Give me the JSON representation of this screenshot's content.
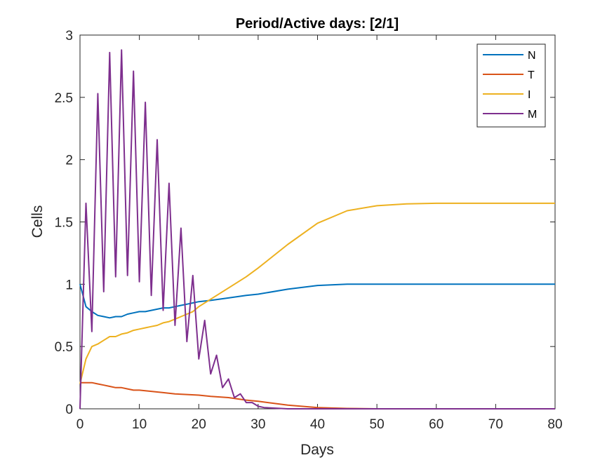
{
  "chart_data": {
    "type": "line",
    "title": "Period/Active days: [2/1]",
    "xlabel": "Days",
    "ylabel": "Cells",
    "xlim": [
      0,
      80
    ],
    "ylim": [
      0,
      3
    ],
    "xticks": [
      0,
      10,
      20,
      30,
      40,
      50,
      60,
      70,
      80
    ],
    "yticks": [
      0,
      0.5,
      1,
      1.5,
      2,
      2.5,
      3
    ],
    "ytick_labels": [
      "0",
      "0.5",
      "1",
      "1.5",
      "2",
      "2.5",
      "3"
    ],
    "grid": false,
    "legend_position": "top-right",
    "series": [
      {
        "name": "N",
        "color": "#0072BD",
        "x": [
          0,
          1,
          2,
          3,
          4,
          5,
          6,
          7,
          8,
          9,
          10,
          11,
          12,
          13,
          14,
          15,
          16,
          17,
          18,
          19,
          20,
          22,
          25,
          28,
          30,
          35,
          40,
          45,
          50,
          60,
          70,
          80
        ],
        "y": [
          1.0,
          0.82,
          0.78,
          0.75,
          0.74,
          0.73,
          0.74,
          0.74,
          0.76,
          0.77,
          0.78,
          0.78,
          0.79,
          0.8,
          0.81,
          0.81,
          0.82,
          0.83,
          0.84,
          0.85,
          0.86,
          0.87,
          0.89,
          0.91,
          0.92,
          0.96,
          0.99,
          1.0,
          1.0,
          1.0,
          1.0,
          1.0
        ]
      },
      {
        "name": "T",
        "color": "#D95319",
        "x": [
          0,
          1,
          2,
          3,
          4,
          5,
          6,
          7,
          8,
          9,
          10,
          12,
          14,
          16,
          18,
          20,
          22,
          25,
          28,
          30,
          35,
          40,
          45,
          50,
          60,
          70,
          80
        ],
        "y": [
          0.21,
          0.21,
          0.21,
          0.2,
          0.19,
          0.18,
          0.17,
          0.17,
          0.16,
          0.15,
          0.15,
          0.14,
          0.13,
          0.12,
          0.115,
          0.11,
          0.1,
          0.09,
          0.07,
          0.06,
          0.03,
          0.01,
          0.003,
          0.0,
          0.0,
          0.0,
          0.0
        ]
      },
      {
        "name": "I",
        "color": "#EDB120",
        "x": [
          0,
          1,
          2,
          3,
          4,
          5,
          6,
          7,
          8,
          9,
          10,
          11,
          12,
          13,
          14,
          15,
          16,
          17,
          18,
          19,
          20,
          22,
          25,
          28,
          30,
          35,
          40,
          45,
          50,
          55,
          60,
          70,
          80
        ],
        "y": [
          0.2,
          0.4,
          0.5,
          0.52,
          0.55,
          0.58,
          0.58,
          0.6,
          0.61,
          0.63,
          0.64,
          0.65,
          0.66,
          0.67,
          0.69,
          0.7,
          0.72,
          0.74,
          0.76,
          0.78,
          0.82,
          0.88,
          0.97,
          1.06,
          1.13,
          1.32,
          1.49,
          1.59,
          1.63,
          1.645,
          1.65,
          1.65,
          1.65
        ]
      },
      {
        "name": "M",
        "color": "#7E2F8E",
        "x": [
          0,
          1,
          2,
          3,
          4,
          5,
          6,
          7,
          8,
          9,
          10,
          11,
          12,
          13,
          14,
          15,
          16,
          17,
          18,
          19,
          20,
          21,
          22,
          23,
          24,
          25,
          26,
          27,
          28,
          29,
          30,
          31,
          33,
          35,
          40,
          50,
          60,
          70,
          80
        ],
        "y": [
          0.0,
          1.65,
          0.62,
          2.53,
          0.94,
          2.86,
          1.06,
          2.88,
          1.07,
          2.71,
          1.02,
          2.46,
          0.91,
          2.16,
          0.79,
          1.81,
          0.67,
          1.45,
          0.54,
          1.07,
          0.4,
          0.71,
          0.28,
          0.43,
          0.17,
          0.24,
          0.09,
          0.12,
          0.05,
          0.05,
          0.02,
          0.01,
          0.005,
          0.0,
          0.0,
          0.0,
          0.0,
          0.0,
          0.0
        ]
      }
    ]
  }
}
